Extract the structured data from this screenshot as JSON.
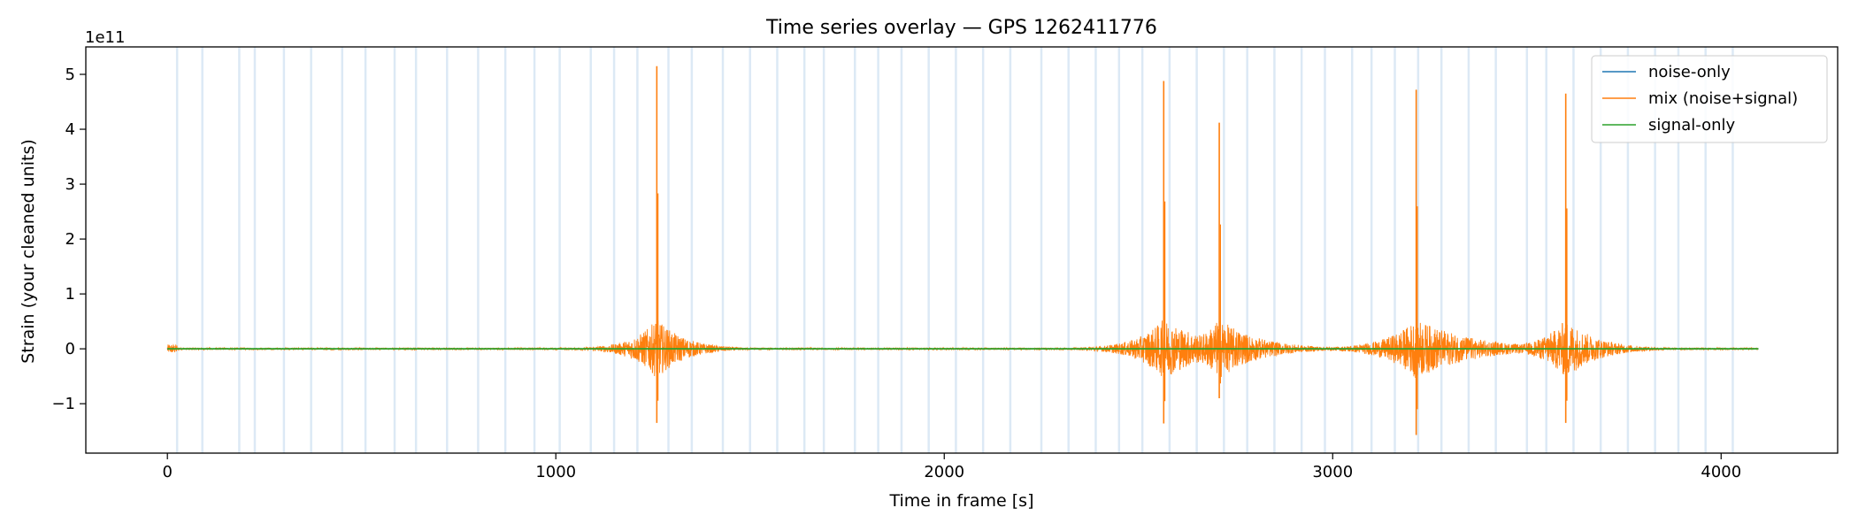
{
  "chart_data": {
    "type": "line",
    "title": "Time series overlay — GPS 1262411776",
    "xlabel": "Time in frame [s]",
    "ylabel": "Strain (your cleaned units)",
    "y_multiplier_label": "1e11",
    "xlim": [
      -210,
      4300
    ],
    "ylim": [
      -1.9,
      5.5
    ],
    "x_ticks": [
      0,
      1000,
      2000,
      3000,
      4000
    ],
    "y_ticks": [
      -1,
      0,
      1,
      2,
      3,
      4,
      5
    ],
    "y_tick_labels": [
      "−1",
      "0",
      "1",
      "2",
      "3",
      "4",
      "5"
    ],
    "grid": false,
    "legend_position": "top-right",
    "series": [
      {
        "name": "noise-only",
        "color": "#1f77b4",
        "style": "flat line near zero",
        "x_range": [
          0,
          4096
        ],
        "value": 0.0
      },
      {
        "name": "mix (noise+signal)",
        "color": "#ff7f0e",
        "style": "noise baseline with bursts",
        "bursts": [
          {
            "t": 1260,
            "peak": 5.15,
            "trough": -1.35,
            "width": 40,
            "tail": 70
          },
          {
            "t": 2565,
            "peak": 4.88,
            "trough": -1.36,
            "width": 45,
            "tail": 120
          },
          {
            "t": 2708,
            "peak": 4.12,
            "trough": -0.9,
            "width": 40,
            "tail": 100
          },
          {
            "t": 3215,
            "peak": 4.72,
            "trough": -1.57,
            "width": 50,
            "tail": 140
          },
          {
            "t": 3600,
            "peak": 4.65,
            "trough": -1.35,
            "width": 40,
            "tail": 80
          }
        ]
      },
      {
        "name": "signal-only",
        "color": "#2ca02c",
        "style": "flat line near zero",
        "x_range": [
          0,
          4096
        ],
        "value": 0.0
      }
    ],
    "vertical_markers": {
      "color": "#c6dbef",
      "x": [
        25,
        90,
        185,
        225,
        300,
        370,
        450,
        510,
        585,
        640,
        720,
        800,
        870,
        945,
        1010,
        1090,
        1150,
        1210,
        1290,
        1350,
        1430,
        1500,
        1570,
        1640,
        1690,
        1770,
        1830,
        1890,
        1960,
        2030,
        2100,
        2170,
        2250,
        2320,
        2390,
        2450,
        2510,
        2580,
        2650,
        2720,
        2780,
        2850,
        2920,
        2980,
        3050,
        3100,
        3160,
        3220,
        3280,
        3350,
        3420,
        3500,
        3550,
        3620,
        3690,
        3760,
        3830,
        3890,
        3960,
        4030
      ]
    }
  }
}
